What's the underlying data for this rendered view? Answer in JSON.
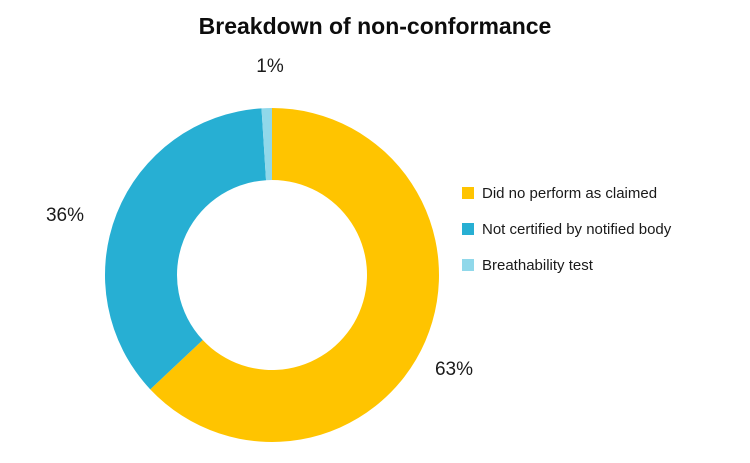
{
  "title": "Breakdown of non-conformance",
  "colors": {
    "yellow": "#FFC400",
    "blue": "#27AFD3",
    "light_blue": "#90D8EA",
    "text": "#1A1A1A",
    "background": "#FFFFFF"
  },
  "chart_data": {
    "type": "pie",
    "subtype": "donut",
    "title": "Breakdown of non-conformance",
    "start_angle_deg": 0,
    "direction": "clockwise",
    "donut_hole_ratio": 0.57,
    "legend_position": "right",
    "slices": [
      {
        "label": "Did no perform as claimed",
        "value": 63,
        "display": "63%",
        "color": "#FFC400"
      },
      {
        "label": "Not certified by notified body",
        "value": 36,
        "display": "36%",
        "color": "#27AFD3"
      },
      {
        "label": "Breathability test",
        "value": 1,
        "display": "1%",
        "color": "#90D8EA"
      }
    ]
  }
}
